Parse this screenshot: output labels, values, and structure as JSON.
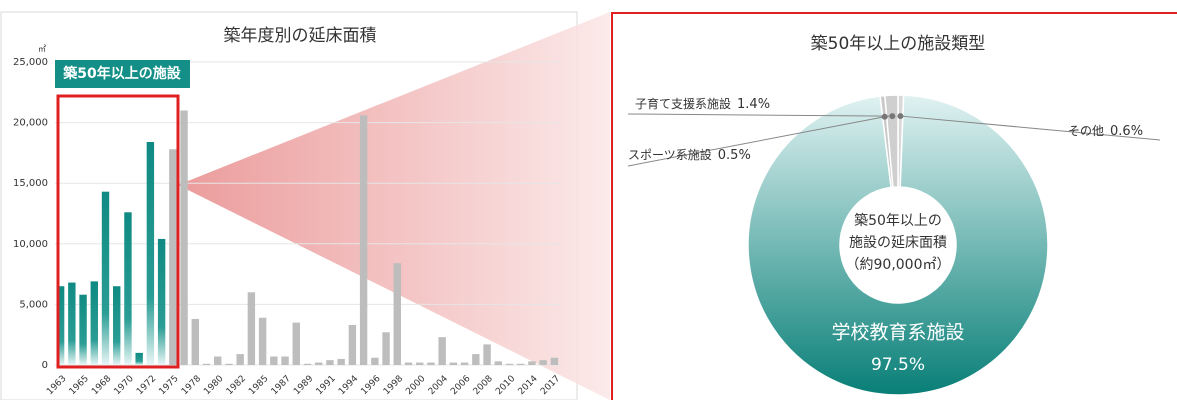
{
  "chart_data": [
    {
      "type": "bar",
      "title": "築年度別の延床面積",
      "y_unit": "㎡",
      "categories": [
        "1963",
        null,
        "1965",
        null,
        "1968",
        null,
        "1970",
        null,
        "1972",
        null,
        "1975",
        null,
        "1978",
        null,
        "1980",
        null,
        "1982",
        null,
        "1985",
        null,
        "1987",
        null,
        "1989",
        null,
        "1991",
        null,
        "1994",
        null,
        "1996",
        null,
        "1998",
        null,
        "2000",
        null,
        "2004",
        null,
        "2006",
        null,
        "2008",
        null,
        "2010",
        null,
        "2014",
        null,
        "2017"
      ],
      "series": [
        {
          "name": "築50年以上の施設",
          "color": "#138f87",
          "values": [
            6500,
            6800,
            5800,
            6900,
            14300,
            6500,
            12600,
            1000,
            18400,
            10400,
            null,
            null,
            null,
            null,
            null,
            null,
            null,
            null,
            null,
            null,
            null,
            null,
            null,
            null,
            null,
            null,
            null,
            null,
            null,
            null,
            null,
            null,
            null,
            null,
            null,
            null,
            null,
            null,
            null,
            null,
            null,
            null,
            null,
            null,
            null
          ]
        },
        {
          "color": "#bdbdbd",
          "values": [
            null,
            null,
            null,
            null,
            null,
            null,
            null,
            null,
            null,
            null,
            17800,
            21000,
            3800,
            100,
            700,
            100,
            900,
            6000,
            3900,
            700,
            700,
            3500,
            100,
            200,
            400,
            500,
            3300,
            20600,
            600,
            2700,
            8400,
            200,
            200,
            200,
            2300,
            200,
            200,
            900,
            1700,
            300,
            100,
            100,
            300,
            400,
            600
          ]
        }
      ],
      "ylim": [
        0,
        25000
      ],
      "yticks": [
        0,
        {
          "value": 5000,
          "label": "5,000"
        },
        {
          "value": 10000,
          "label": "10,000"
        },
        {
          "value": 15000,
          "label": "15,000"
        },
        {
          "value": 20000,
          "label": "20,000"
        },
        {
          "value": 25000,
          "label": "25,000"
        }
      ],
      "grid": true
    },
    {
      "type": "pie",
      "title": "築50年以上の施設類型",
      "center_text": [
        "築50年以上の",
        "施設の延床面積",
        "（約90,000㎡）"
      ],
      "categories": [
        "その他",
        "学校教育系施設",
        "スポーツ系施設",
        "子育て支援系施設"
      ],
      "values": [
        0.6,
        97.5,
        0.5,
        1.4
      ],
      "value_labels": [
        "0.6%",
        "97.5%",
        "0.5%",
        "1.4%"
      ],
      "colors": [
        "#d8d8d8",
        "url(#tealGrad)",
        "#c8c8c8",
        "#cfcfcf"
      ]
    }
  ]
}
